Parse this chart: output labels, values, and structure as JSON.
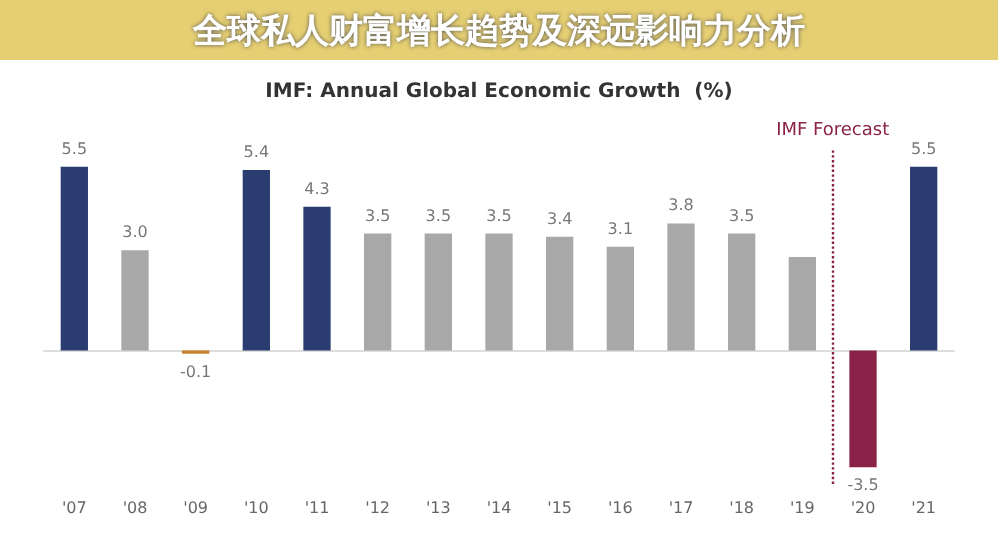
{
  "chart_data": {
    "type": "bar",
    "title": "IMF: Annual Global Economic Growth  (%)",
    "subtitle": "全球私人财富增长趋势及深远影响力分析",
    "categories": [
      "'07",
      "'08",
      "'09",
      "'10",
      "'11",
      "'12",
      "'13",
      "'14",
      "'15",
      "'16",
      "'17",
      "'18",
      "'19",
      "'20",
      "'21"
    ],
    "values": [
      5.5,
      3.0,
      -0.1,
      5.4,
      4.3,
      3.5,
      3.5,
      3.5,
      3.4,
      3.1,
      3.8,
      3.5,
      2.8,
      -3.5,
      5.5
    ],
    "colors": [
      "#2b3d70",
      "#a8a8a8",
      "#c9822e",
      "#2b3d70",
      "#2b3d70",
      "#a8a8a8",
      "#a8a8a8",
      "#a8a8a8",
      "#a8a8a8",
      "#a8a8a8",
      "#a8a8a8",
      "#a8a8a8",
      "#a8a8a8",
      "#8a2248",
      "#2b3d70"
    ],
    "value_labels": [
      "5.5",
      "3.0",
      "-0.1",
      "5.4",
      "4.3",
      "3.5",
      "3.5",
      "3.5",
      "3.4",
      "3.1",
      "3.8",
      "3.5",
      null,
      "-3.5",
      "5.5"
    ],
    "ref_lines": [
      {
        "axis": "x",
        "value": "'20",
        "label": "IMF Forecast",
        "color": "#8a2248",
        "line_style": "dotted"
      }
    ],
    "grid": false
  }
}
